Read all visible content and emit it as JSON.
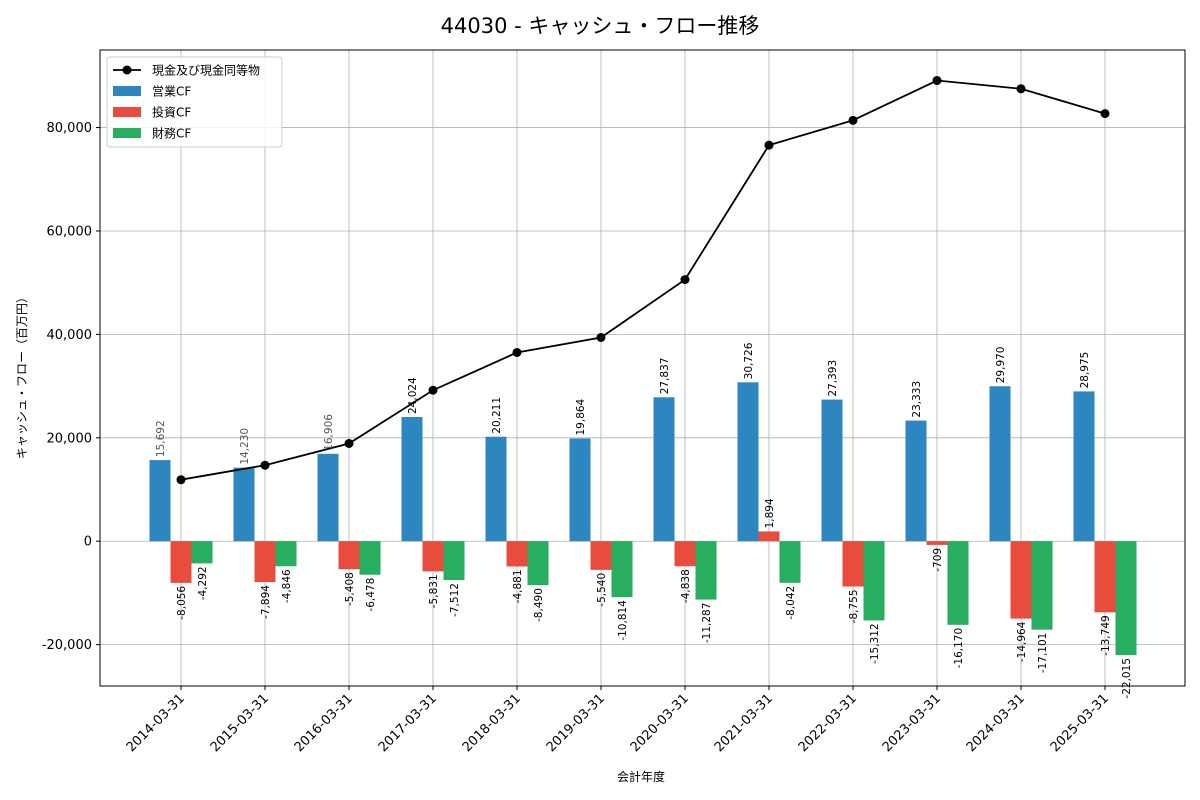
{
  "chart_data": {
    "type": "bar",
    "title": "44030 - キャッシュ・フロー推移",
    "xlabel": "会計年度",
    "ylabel": "キャッシュ・フロー（百万円）",
    "ylim": [
      -28000,
      95000
    ],
    "yticks": [
      -20000,
      0,
      20000,
      40000,
      60000,
      80000
    ],
    "ytick_labels": [
      "-20,000",
      "0",
      "20,000",
      "40,000",
      "60,000",
      "80,000"
    ],
    "grid": true,
    "legend_position": "top-left",
    "categories": [
      "2014-03-31",
      "2015-03-31",
      "2016-03-31",
      "2017-03-31",
      "2018-03-31",
      "2019-03-31",
      "2020-03-31",
      "2021-03-31",
      "2022-03-31",
      "2023-03-31",
      "2024-03-31",
      "2025-03-31"
    ],
    "series": [
      {
        "name": "営業CF",
        "kind": "bar",
        "color": "#2e86c1",
        "values": [
          15692,
          14230,
          16906,
          24024,
          20211,
          19864,
          27837,
          30726,
          27393,
          23333,
          29970,
          28975
        ],
        "labels": [
          "15,692",
          "14,230",
          "16,906",
          "24,024",
          "20,211",
          "19,864",
          "27,837",
          "30,726",
          "27,393",
          "23,333",
          "29,970",
          "28,975"
        ]
      },
      {
        "name": "投資CF",
        "kind": "bar",
        "color": "#e74c3c",
        "values": [
          -8056,
          -7894,
          -5408,
          -5831,
          -4881,
          -5540,
          -4838,
          1894,
          -8755,
          -709,
          -14964,
          -13749
        ],
        "labels": [
          "-8,056",
          "-7,894",
          "-5,408",
          "-5,831",
          "-4,881",
          "-5,540",
          "-4,838",
          "1,894",
          "-8,755",
          "-709",
          "-14,964",
          "-13,749"
        ]
      },
      {
        "name": "財務CF",
        "kind": "bar",
        "color": "#27ae60",
        "values": [
          -4292,
          -4846,
          -6478,
          -7512,
          -8490,
          -10814,
          -11287,
          -8042,
          -15312,
          -16170,
          -17101,
          -22015
        ],
        "labels": [
          "-4,292",
          "-4,846",
          "-6,478",
          "-7,512",
          "-8,490",
          "-10,814",
          "-11,287",
          "-8,042",
          "-15,312",
          "-16,170",
          "-17,101",
          "-22,015"
        ]
      },
      {
        "name": "現金及び現金同等物",
        "kind": "line",
        "color": "#000000",
        "values": [
          11900,
          14700,
          18900,
          29200,
          36500,
          39400,
          50600,
          76600,
          81400,
          89100,
          87500,
          82700
        ]
      }
    ]
  }
}
